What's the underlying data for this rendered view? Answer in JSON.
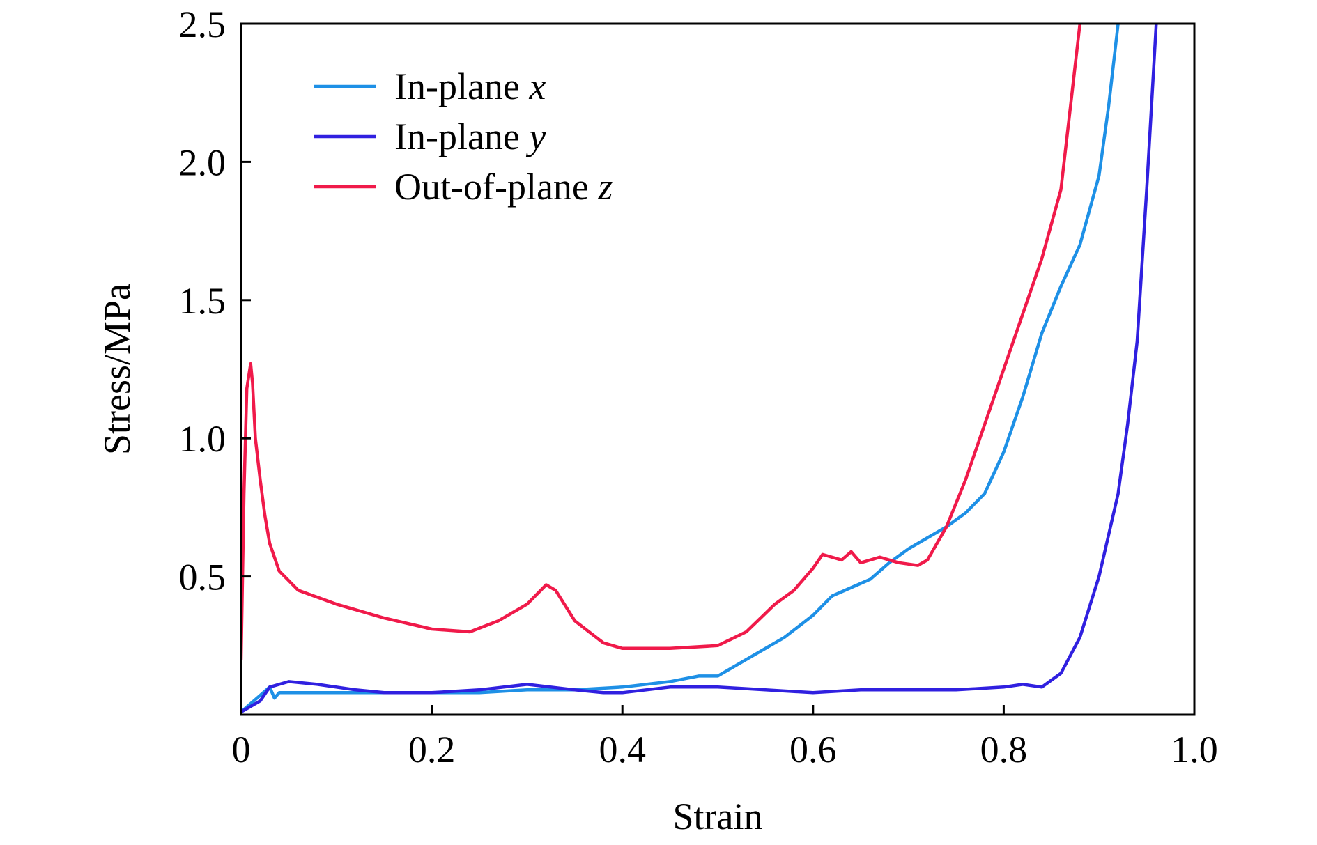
{
  "chart_data": {
    "type": "line",
    "xlabel": "Strain",
    "ylabel": "Stress/MPa",
    "xlim": [
      0,
      1.0
    ],
    "ylim": [
      0,
      2.5
    ],
    "x_ticks": [
      {
        "value": 0,
        "label": "0"
      },
      {
        "value": 0.2,
        "label": "0.2"
      },
      {
        "value": 0.4,
        "label": "0.4"
      },
      {
        "value": 0.6,
        "label": "0.6"
      },
      {
        "value": 0.8,
        "label": "0.8"
      },
      {
        "value": 1.0,
        "label": "1.0"
      }
    ],
    "y_ticks": [
      {
        "value": 0.5,
        "label": "0.5"
      },
      {
        "value": 1.0,
        "label": "1.0"
      },
      {
        "value": 1.5,
        "label": "1.5"
      },
      {
        "value": 2.0,
        "label": "2.0"
      },
      {
        "value": 2.5,
        "label": "2.5"
      }
    ],
    "grid": false,
    "legend_position": "top-left",
    "series": [
      {
        "name": "In-plane",
        "name_italic": "x",
        "color": "#1e90e6",
        "x": [
          0,
          0.01,
          0.02,
          0.03,
          0.035,
          0.04,
          0.05,
          0.07,
          0.1,
          0.15,
          0.2,
          0.25,
          0.3,
          0.35,
          0.4,
          0.45,
          0.48,
          0.5,
          0.52,
          0.55,
          0.57,
          0.6,
          0.62,
          0.64,
          0.66,
          0.68,
          0.7,
          0.72,
          0.74,
          0.76,
          0.78,
          0.8,
          0.82,
          0.84,
          0.86,
          0.88,
          0.9,
          0.91,
          0.92
        ],
        "y": [
          0.01,
          0.04,
          0.07,
          0.1,
          0.06,
          0.08,
          0.08,
          0.08,
          0.08,
          0.08,
          0.08,
          0.08,
          0.09,
          0.09,
          0.1,
          0.12,
          0.14,
          0.14,
          0.18,
          0.24,
          0.28,
          0.36,
          0.43,
          0.46,
          0.49,
          0.55,
          0.6,
          0.64,
          0.68,
          0.73,
          0.8,
          0.95,
          1.15,
          1.38,
          1.55,
          1.7,
          1.95,
          2.2,
          2.5
        ]
      },
      {
        "name": "In-plane",
        "name_italic": "y",
        "color": "#3020e0",
        "x": [
          0,
          0.02,
          0.03,
          0.05,
          0.08,
          0.12,
          0.15,
          0.2,
          0.25,
          0.3,
          0.35,
          0.38,
          0.4,
          0.45,
          0.5,
          0.55,
          0.6,
          0.65,
          0.7,
          0.75,
          0.8,
          0.82,
          0.84,
          0.86,
          0.88,
          0.9,
          0.92,
          0.93,
          0.94,
          0.95,
          0.96
        ],
        "y": [
          0.01,
          0.05,
          0.1,
          0.12,
          0.11,
          0.09,
          0.08,
          0.08,
          0.09,
          0.11,
          0.09,
          0.08,
          0.08,
          0.1,
          0.1,
          0.09,
          0.08,
          0.09,
          0.09,
          0.09,
          0.1,
          0.11,
          0.1,
          0.15,
          0.28,
          0.5,
          0.8,
          1.05,
          1.35,
          1.9,
          2.5
        ]
      },
      {
        "name": "Out-of-plane",
        "name_italic": "z",
        "color": "#f01a4a",
        "x": [
          0,
          0.003,
          0.006,
          0.01,
          0.012,
          0.015,
          0.02,
          0.025,
          0.03,
          0.04,
          0.06,
          0.1,
          0.15,
          0.2,
          0.24,
          0.27,
          0.3,
          0.32,
          0.33,
          0.35,
          0.38,
          0.4,
          0.45,
          0.5,
          0.53,
          0.56,
          0.58,
          0.6,
          0.61,
          0.63,
          0.64,
          0.65,
          0.67,
          0.69,
          0.71,
          0.72,
          0.74,
          0.76,
          0.8,
          0.84,
          0.86,
          0.87,
          0.88
        ],
        "y": [
          0.2,
          0.8,
          1.18,
          1.27,
          1.2,
          1.0,
          0.85,
          0.72,
          0.62,
          0.52,
          0.45,
          0.4,
          0.35,
          0.31,
          0.3,
          0.34,
          0.4,
          0.47,
          0.45,
          0.34,
          0.26,
          0.24,
          0.24,
          0.25,
          0.3,
          0.4,
          0.45,
          0.53,
          0.58,
          0.56,
          0.59,
          0.55,
          0.57,
          0.55,
          0.54,
          0.56,
          0.68,
          0.85,
          1.25,
          1.65,
          1.9,
          2.2,
          2.5
        ]
      }
    ]
  }
}
